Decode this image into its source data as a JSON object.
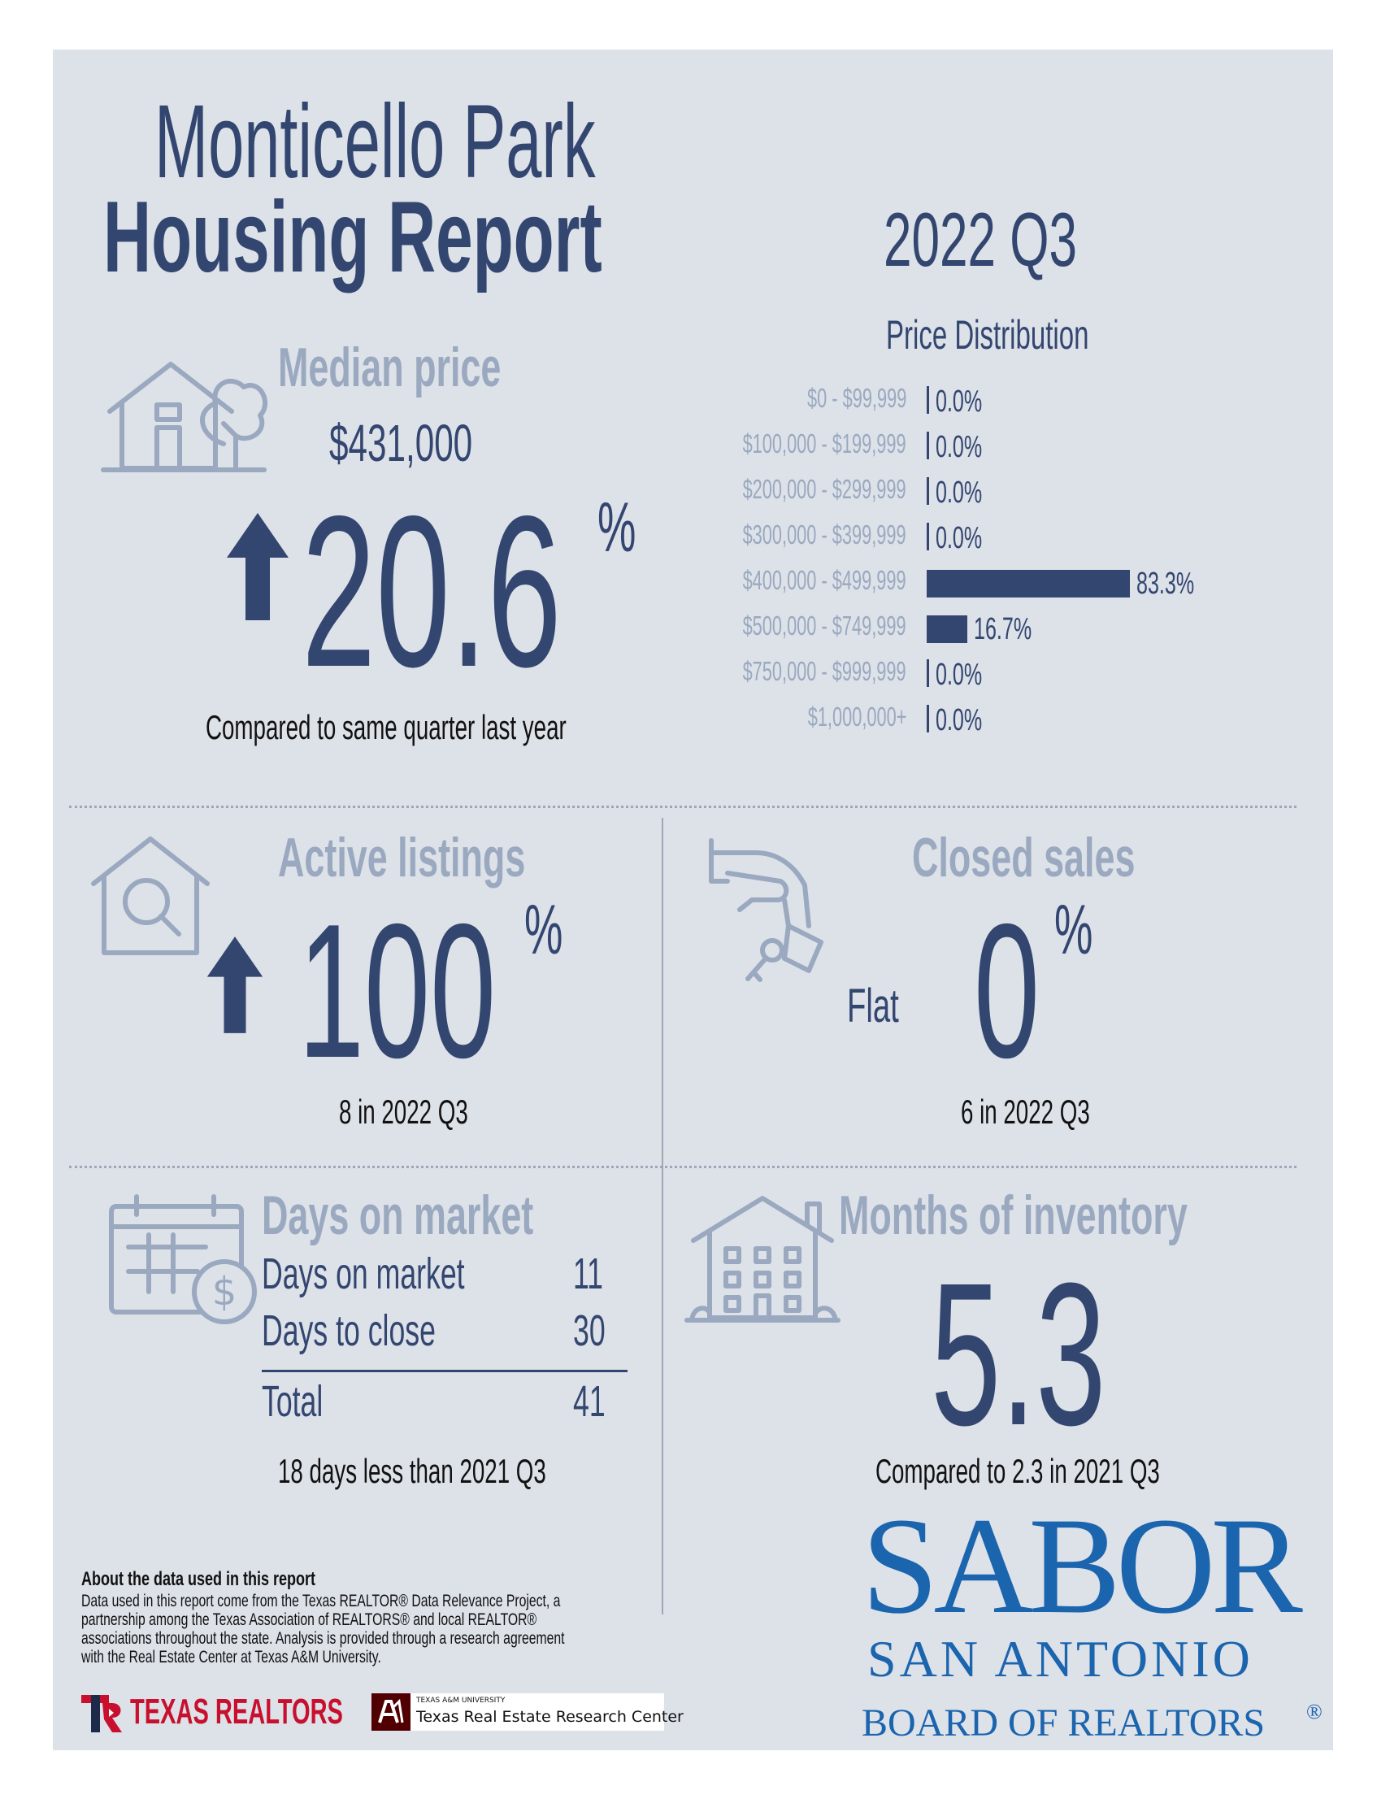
{
  "header": {
    "title_line1": "Monticello Park",
    "title_line2": "Housing Report",
    "quarter": "2022 Q3"
  },
  "median_price": {
    "title": "Median price",
    "value": "$431,000",
    "change": "20.6",
    "percent_sign": "%",
    "direction": "up",
    "note": "Compared to same quarter last year"
  },
  "price_distribution": {
    "title": "Price Distribution",
    "rows": [
      {
        "label": "$0 - $99,999",
        "value": "0.0%",
        "pct": 0.0
      },
      {
        "label": "$100,000 - $199,999",
        "value": "0.0%",
        "pct": 0.0
      },
      {
        "label": "$200,000 - $299,999",
        "value": "0.0%",
        "pct": 0.0
      },
      {
        "label": "$300,000 - $399,999",
        "value": "0.0%",
        "pct": 0.0
      },
      {
        "label": "$400,000 - $499,999",
        "value": "83.3%",
        "pct": 83.3
      },
      {
        "label": "$500,000 - $749,999",
        "value": "16.7%",
        "pct": 16.7
      },
      {
        "label": "$750,000 - $999,999",
        "value": "0.0%",
        "pct": 0.0
      },
      {
        "label": "$1,000,000+",
        "value": "0.0%",
        "pct": 0.0
      }
    ]
  },
  "active_listings": {
    "title": "Active listings",
    "change": "100",
    "percent_sign": "%",
    "direction": "up",
    "note": "8 in 2022 Q3"
  },
  "closed_sales": {
    "title": "Closed sales",
    "change": "0",
    "percent_sign": "%",
    "direction_label": "Flat",
    "note": "6 in 2022 Q3"
  },
  "days_on_market": {
    "title": "Days on market",
    "rows": [
      {
        "label": "Days on market",
        "value": "11"
      },
      {
        "label": "Days to close",
        "value": "30"
      }
    ],
    "total_label": "Total",
    "total_value": "41",
    "note": "18 days less than 2021 Q3"
  },
  "months_inventory": {
    "title": "Months of inventory",
    "value": "5.3",
    "note": "Compared to 2.3 in 2021 Q3"
  },
  "about": {
    "heading": "About the data used in this report",
    "lines": [
      "Data used in this report come from the Texas REALTOR® Data Relevance Project, a",
      "partnership among the Texas Association of REALTORS® and local REALTOR®",
      "associations throughout the state. Analysis is provided through a research agreement",
      "with the Real Estate Center at Texas A&M University."
    ]
  },
  "logos": {
    "texas_realtors": "TEXAS REALTORS",
    "tamu_small": "TEXAS A&M UNIVERSITY",
    "tamu_center": "Texas Real Estate Research Center",
    "sabor_mark": "SABOR",
    "sabor_line1": "SAN ANTONIO",
    "sabor_line2": "BOARD OF REALTORS",
    "sabor_reg": "®"
  },
  "colors": {
    "navy": "#334670",
    "grey_text": "#9aa9c0",
    "panel": "#dde1e8",
    "sabor_blue": "#1b64ae",
    "texas_red": "#c8102e",
    "tamu_maroon": "#500000"
  }
}
